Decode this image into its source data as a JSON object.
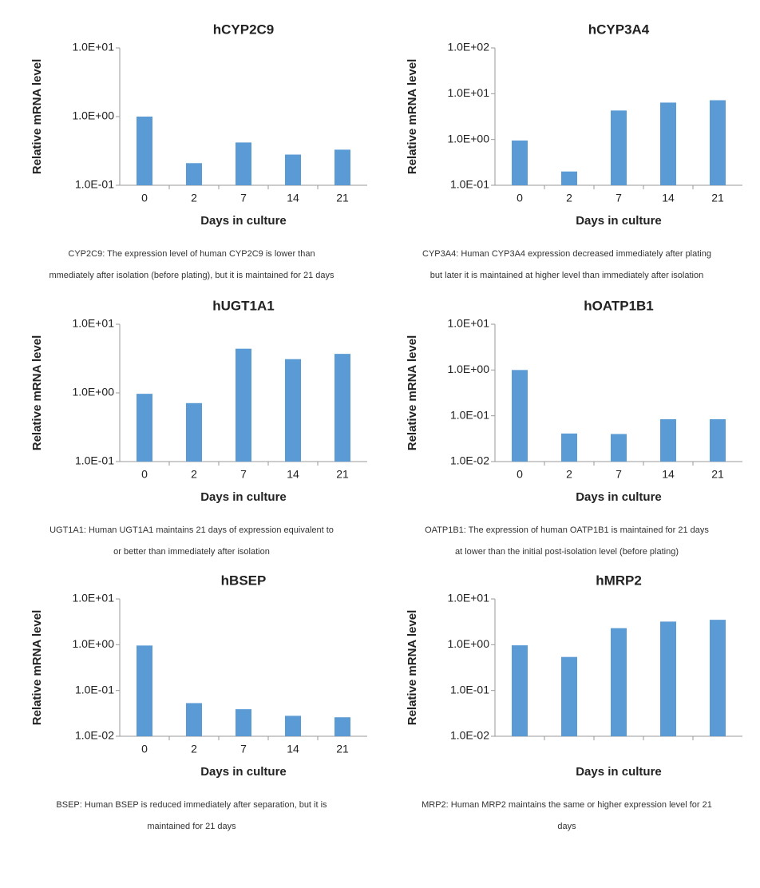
{
  "chart_data": [
    {
      "type": "bar",
      "title": "hCYP2C9",
      "xlabel": "Days in culture",
      "ylabel": "Relative mRNA level",
      "categories": [
        "0",
        "2",
        "7",
        "14",
        "21"
      ],
      "values": [
        1.0,
        0.21,
        0.42,
        0.28,
        0.33
      ],
      "color": "#5b9bd5",
      "log_scale": true,
      "ylim": [
        0.1,
        10
      ],
      "yticks": [
        {
          "value": 0.1,
          "label": "1.0E-01"
        },
        {
          "value": 1,
          "label": "1.0E+00"
        },
        {
          "value": 10,
          "label": "1.0E+01"
        }
      ],
      "caption": [
        "CYP2C9: The expression level of human CYP2C9 is lower than",
        "mmediately after isolation (before plating), but it is maintained for 21 days"
      ]
    },
    {
      "type": "bar",
      "title": "hCYP3A4",
      "xlabel": "Days in culture",
      "ylabel": "Relative mRNA level",
      "categories": [
        "0",
        "2",
        "7",
        "14",
        "21"
      ],
      "values": [
        0.95,
        0.2,
        4.3,
        6.4,
        7.2
      ],
      "color": "#5b9bd5",
      "log_scale": true,
      "ylim": [
        0.1,
        100
      ],
      "yticks": [
        {
          "value": 0.1,
          "label": "1.0E-01"
        },
        {
          "value": 1,
          "label": "1.0E+00"
        },
        {
          "value": 10,
          "label": "1.0E+01"
        },
        {
          "value": 100,
          "label": "1.0E+02"
        }
      ],
      "caption": [
        "CYP3A4: Human CYP3A4 expression decreased immediately after plating",
        "but later it is maintained at higher level than immediately after isolation"
      ]
    },
    {
      "type": "bar",
      "title": "hUGT1A1",
      "xlabel": "Days in culture",
      "ylabel": "Relative mRNA level",
      "categories": [
        "0",
        "2",
        "7",
        "14",
        "21"
      ],
      "values": [
        0.97,
        0.71,
        4.4,
        3.1,
        3.7
      ],
      "color": "#5b9bd5",
      "log_scale": true,
      "ylim": [
        0.1,
        10
      ],
      "yticks": [
        {
          "value": 0.1,
          "label": "1.0E-01"
        },
        {
          "value": 1,
          "label": "1.0E+00"
        },
        {
          "value": 10,
          "label": "1.0E+01"
        }
      ],
      "caption": [
        "UGT1A1: Human UGT1A1 maintains 21 days of expression equivalent to",
        "or better than immediately after isolation"
      ]
    },
    {
      "type": "bar",
      "title": "hOATP1B1",
      "xlabel": "Days in culture",
      "ylabel": "Relative mRNA level",
      "categories": [
        "0",
        "2",
        "7",
        "14",
        "21"
      ],
      "values": [
        1.0,
        0.041,
        0.04,
        0.084,
        0.084
      ],
      "color": "#5b9bd5",
      "log_scale": true,
      "ylim": [
        0.01,
        10
      ],
      "yticks": [
        {
          "value": 0.01,
          "label": "1.0E-02"
        },
        {
          "value": 0.1,
          "label": "1.0E-01"
        },
        {
          "value": 1,
          "label": "1.0E+00"
        },
        {
          "value": 10,
          "label": "1.0E+01"
        }
      ],
      "caption": [
        "OATP1B1: The expression of human OATP1B1 is maintained for 21 days",
        "at lower than the initial post-isolation level (before plating)"
      ]
    },
    {
      "type": "bar",
      "title": "hBSEP",
      "xlabel": "Days in culture",
      "ylabel": "Relative mRNA level",
      "categories": [
        "0",
        "2",
        "7",
        "14",
        "21"
      ],
      "values": [
        0.96,
        0.053,
        0.039,
        0.028,
        0.026
      ],
      "color": "#5b9bd5",
      "log_scale": true,
      "ylim": [
        0.01,
        10
      ],
      "yticks": [
        {
          "value": 0.01,
          "label": "1.0E-02"
        },
        {
          "value": 0.1,
          "label": "1.0E-01"
        },
        {
          "value": 1,
          "label": "1.0E+00"
        },
        {
          "value": 10,
          "label": "1.0E+01"
        }
      ],
      "caption": [
        "BSEP: Human BSEP is reduced immediately after separation, but it is",
        "maintained for 21 days"
      ]
    },
    {
      "type": "bar",
      "title": "hMRP2",
      "xlabel": "Days in culture",
      "ylabel": "Relative mRNA level",
      "categories": [
        null,
        null,
        null,
        null,
        null
      ],
      "values": [
        0.97,
        0.54,
        2.3,
        3.2,
        3.5
      ],
      "color": "#5b9bd5",
      "log_scale": true,
      "ylim": [
        0.01,
        10
      ],
      "yticks": [
        {
          "value": 0.01,
          "label": "1.0E-02"
        },
        {
          "value": 0.1,
          "label": "1.0E-01"
        },
        {
          "value": 1,
          "label": "1.0E+00"
        },
        {
          "value": 10,
          "label": "1.0E+01"
        }
      ],
      "caption": [
        "MRP2: Human MRP2 maintains the same or higher expression level for 21",
        "days"
      ]
    }
  ]
}
